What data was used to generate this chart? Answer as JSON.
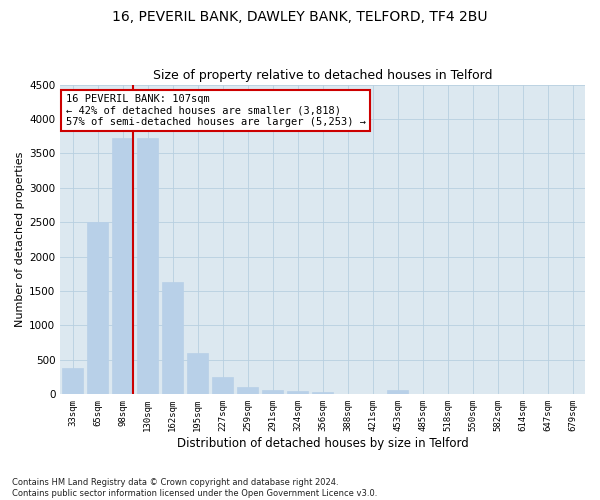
{
  "title1": "16, PEVERIL BANK, DAWLEY BANK, TELFORD, TF4 2BU",
  "title2": "Size of property relative to detached houses in Telford",
  "xlabel": "Distribution of detached houses by size in Telford",
  "ylabel": "Number of detached properties",
  "categories": [
    "33sqm",
    "65sqm",
    "98sqm",
    "130sqm",
    "162sqm",
    "195sqm",
    "227sqm",
    "259sqm",
    "291sqm",
    "324sqm",
    "356sqm",
    "388sqm",
    "421sqm",
    "453sqm",
    "485sqm",
    "518sqm",
    "550sqm",
    "582sqm",
    "614sqm",
    "647sqm",
    "679sqm"
  ],
  "values": [
    380,
    2500,
    3720,
    3720,
    1630,
    600,
    245,
    100,
    60,
    45,
    40,
    0,
    0,
    60,
    0,
    0,
    0,
    0,
    0,
    0,
    0
  ],
  "bar_color": "#b8d0e8",
  "vline_color": "#cc0000",
  "annotation_text": "16 PEVERIL BANK: 107sqm\n← 42% of detached houses are smaller (3,818)\n57% of semi-detached houses are larger (5,253) →",
  "annotation_box_color": "#ffffff",
  "annotation_box_edge": "#cc0000",
  "ylim": [
    0,
    4500
  ],
  "yticks": [
    0,
    500,
    1000,
    1500,
    2000,
    2500,
    3000,
    3500,
    4000,
    4500
  ],
  "footer": "Contains HM Land Registry data © Crown copyright and database right 2024.\nContains public sector information licensed under the Open Government Licence v3.0.",
  "bg_color": "#ffffff",
  "plot_bg_color": "#dce8f0",
  "grid_color": "#b8cfe0"
}
